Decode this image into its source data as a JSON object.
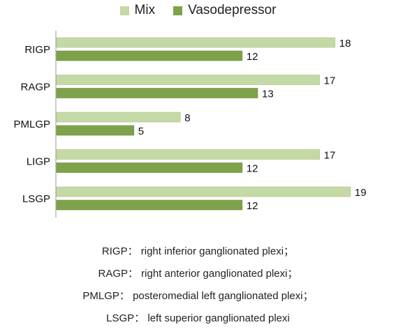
{
  "chart_data": {
    "type": "bar",
    "orientation": "horizontal",
    "title": "",
    "xlabel": "",
    "ylabel": "",
    "categories": [
      "RIGP",
      "RAGP",
      "PMLGP",
      "LIGP",
      "LSGP"
    ],
    "series": [
      {
        "name": "Mix",
        "color": "#c5d9a6",
        "values": [
          18,
          17,
          8,
          17,
          19
        ]
      },
      {
        "name": "Vasodepressor",
        "color": "#7ea24a",
        "values": [
          12,
          13,
          5,
          12,
          12
        ]
      }
    ],
    "xlim": [
      0,
      19.5
    ],
    "grid": false,
    "legend": "top-center",
    "data_labels": true
  },
  "notes": [
    "RIGP： right inferior ganglionated plexi；",
    "RAGP： right anterior ganglionated plexi；",
    "PMLGP： posteromedial left ganglionated plexi；",
    "LSGP： left superior ganglionated plexi"
  ]
}
